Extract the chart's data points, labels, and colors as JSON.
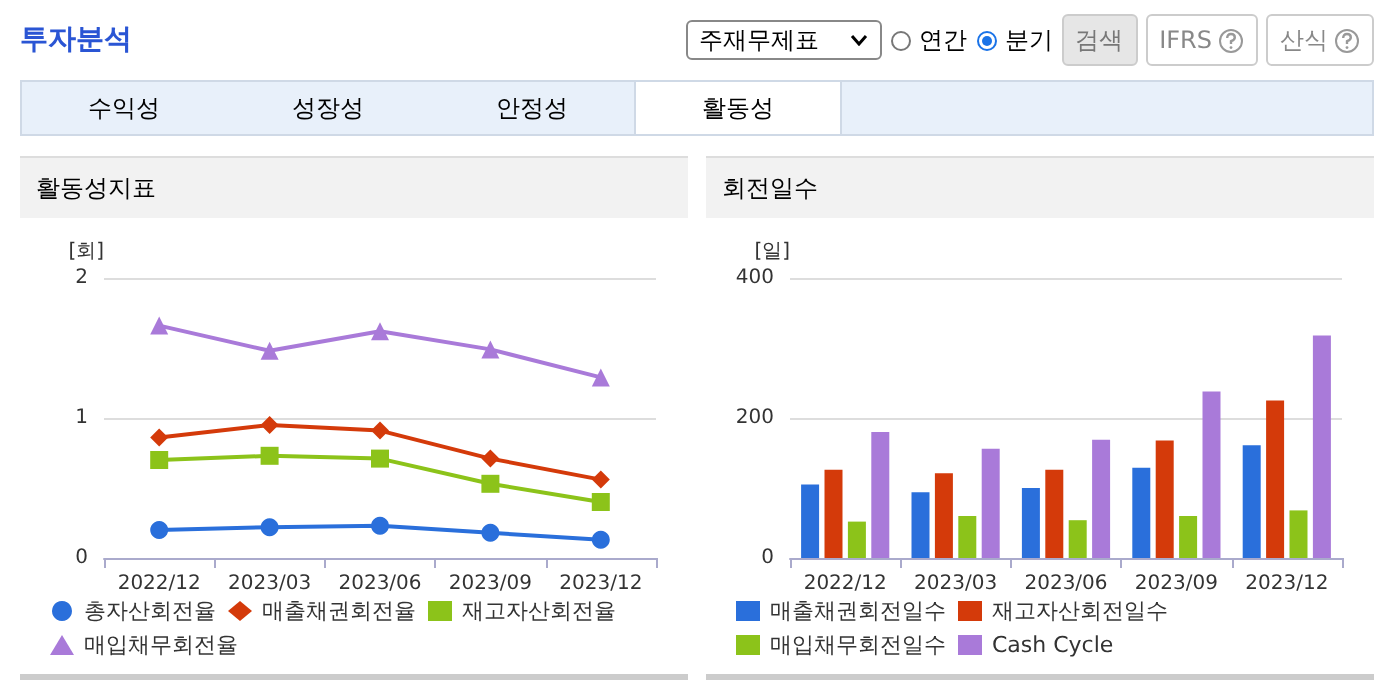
{
  "chart_data": [
    {
      "type": "other",
      "title": "투자분석",
      "annotations": [
        "주재무제표",
        "연간",
        "분기",
        "검색",
        "IFRS",
        "산식",
        "수익성",
        "성장성",
        "안정성",
        "활동성"
      ]
    },
    {
      "type": "line",
      "title": "활동성지표",
      "ylabel": "[회]",
      "categories": [
        "2022/12",
        "2023/03",
        "2023/06",
        "2023/09",
        "2023/12"
      ],
      "ylim": [
        0,
        2
      ],
      "yticks": [
        0,
        1,
        2
      ],
      "grid": "y",
      "legend": "bottom",
      "series": [
        {
          "name": "총자산회전율",
          "color": "#2a6fdb",
          "marker": "circle",
          "values": [
            0.2,
            0.22,
            0.23,
            0.18,
            0.13
          ]
        },
        {
          "name": "매출채권회전율",
          "color": "#d43a0a",
          "marker": "diamond",
          "values": [
            0.86,
            0.95,
            0.91,
            0.71,
            0.56
          ]
        },
        {
          "name": "재고자산회전율",
          "color": "#8cc31a",
          "marker": "square",
          "values": [
            0.7,
            0.73,
            0.71,
            0.53,
            0.4
          ]
        },
        {
          "name": "매입채무회전율",
          "color": "#a97ad9",
          "marker": "triangle",
          "values": [
            1.66,
            1.48,
            1.62,
            1.49,
            1.29
          ]
        }
      ]
    },
    {
      "type": "bar",
      "title": "회전일수",
      "ylabel": "[일]",
      "categories": [
        "2022/12",
        "2023/03",
        "2023/06",
        "2023/09",
        "2023/12"
      ],
      "ylim": [
        0,
        400
      ],
      "yticks": [
        0,
        200,
        400
      ],
      "grid": "y",
      "legend": "bottom",
      "series": [
        {
          "name": "매출채권회전일수",
          "color": "#2a6fdb",
          "values": [
            105,
            94,
            100,
            129,
            161
          ]
        },
        {
          "name": "재고자산회전일수",
          "color": "#d43a0a",
          "values": [
            126,
            121,
            126,
            168,
            225
          ]
        },
        {
          "name": "매입채무회전일수",
          "color": "#8cc31a",
          "values": [
            52,
            60,
            54,
            60,
            68
          ]
        },
        {
          "name": "Cash Cycle",
          "color": "#a97ad9",
          "values": [
            180,
            156,
            169,
            238,
            318
          ]
        }
      ]
    }
  ]
}
